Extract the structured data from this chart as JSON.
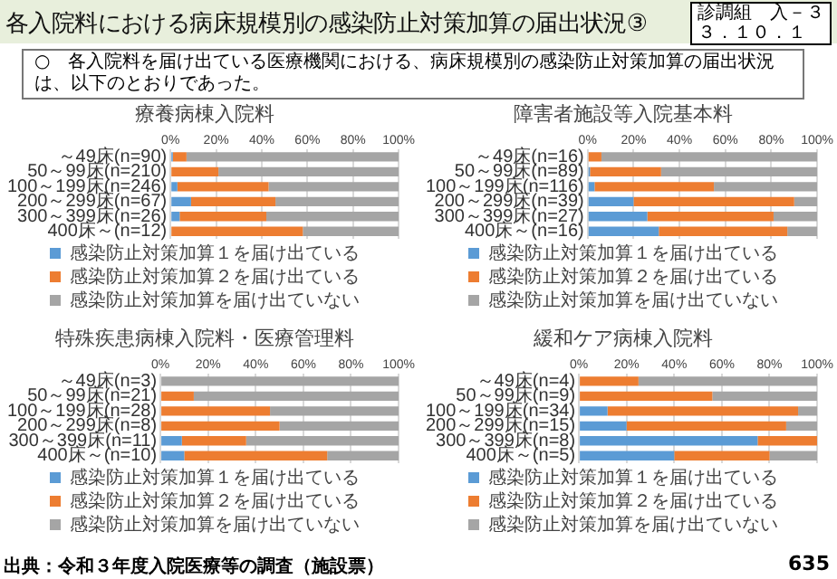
{
  "chart_data": [
    {
      "type": "bar",
      "orientation": "horizontal",
      "stacked": true,
      "title": "療養病棟入院料",
      "categories": [
        "～49床(n=90)",
        "50～99床(n=210)",
        "100～199床(n=246)",
        "200～299床(n=67)",
        "300～399床(n=26)",
        "400床～(n=12)"
      ],
      "series": [
        {
          "name": "感染防止対策加算１を届け出ている",
          "color": "#5b9bd5",
          "values": [
            1,
            0,
            3,
            9,
            4,
            0
          ]
        },
        {
          "name": "感染防止対策加算２を届け出ている",
          "color": "#ed7d31",
          "values": [
            6,
            21,
            40,
            37,
            38,
            58
          ]
        },
        {
          "name": "感染防止対策加算を届け出ていない",
          "color": "#a5a5a5",
          "values": [
            93,
            79,
            57,
            54,
            58,
            42
          ]
        }
      ],
      "xlim": [
        0,
        100
      ],
      "xticks": [
        {
          "value": 0,
          "label": "0%"
        },
        {
          "value": 20,
          "label": "20%"
        },
        {
          "value": 40,
          "label": "40%"
        },
        {
          "value": 60,
          "label": "60%"
        },
        {
          "value": 80,
          "label": "80%"
        },
        {
          "value": 100,
          "label": "100%"
        }
      ],
      "grid": "x",
      "legend": "bottom",
      "annotations": [
        "各入院料における病床規模別の感染防止対策加算の届出状況③",
        "診調組　入－３",
        "３．１０．１",
        "○　各入院料を届け出ている医療機関における、病床規模別の感染防止対策加算の届出状況は、以下のとおりであった。",
        "出典：令和３年度入院医療等の調査（施設票）",
        "635"
      ]
    },
    {
      "type": "bar",
      "orientation": "horizontal",
      "stacked": true,
      "title": "障害者施設等入院基本料",
      "categories": [
        "～49床(n=16)",
        "50～99床(n=89)",
        "100～199床(n=116)",
        "200～299床(n=39)",
        "300～399床(n=27)",
        "400床～(n=16)"
      ],
      "series": [
        {
          "name": "感染防止対策加算１を届け出ている",
          "color": "#5b9bd5",
          "values": [
            0,
            1,
            3,
            20,
            26,
            31
          ]
        },
        {
          "name": "感染防止対策加算２を届け出ている",
          "color": "#ed7d31",
          "values": [
            6,
            31,
            52,
            70,
            55,
            56
          ]
        },
        {
          "name": "感染防止対策加算を届け出ていない",
          "color": "#a5a5a5",
          "values": [
            94,
            68,
            45,
            10,
            19,
            13
          ]
        }
      ],
      "xlim": [
        0,
        100
      ],
      "xticks": [
        {
          "value": 0,
          "label": "0%"
        },
        {
          "value": 20,
          "label": "20%"
        },
        {
          "value": 40,
          "label": "40%"
        },
        {
          "value": 60,
          "label": "60%"
        },
        {
          "value": 80,
          "label": "80%"
        },
        {
          "value": 100,
          "label": "100%"
        }
      ],
      "grid": "x",
      "legend": "bottom"
    },
    {
      "type": "bar",
      "orientation": "horizontal",
      "stacked": true,
      "title": "特殊疾患病棟入院料・医療管理料",
      "categories": [
        "～49床(n=3)",
        "50～99床(n=21)",
        "100～199床(n=28)",
        "200～299床(n=8)",
        "300～399床(n=11)",
        "400床～(n=10)"
      ],
      "series": [
        {
          "name": "感染防止対策加算１を届け出ている",
          "color": "#5b9bd5",
          "values": [
            0,
            0,
            0,
            0,
            9,
            10
          ]
        },
        {
          "name": "感染防止対策加算２を届け出ている",
          "color": "#ed7d31",
          "values": [
            0,
            14,
            46,
            50,
            27,
            60
          ]
        },
        {
          "name": "感染防止対策加算を届け出ていない",
          "color": "#a5a5a5",
          "values": [
            100,
            86,
            54,
            50,
            64,
            30
          ]
        }
      ],
      "xlim": [
        0,
        100
      ],
      "xticks": [
        {
          "value": 0,
          "label": "0%"
        },
        {
          "value": 20,
          "label": "20%"
        },
        {
          "value": 40,
          "label": "40%"
        },
        {
          "value": 60,
          "label": "60%"
        },
        {
          "value": 80,
          "label": "80%"
        },
        {
          "value": 100,
          "label": "100%"
        }
      ],
      "grid": "x",
      "legend": "bottom"
    },
    {
      "type": "bar",
      "orientation": "horizontal",
      "stacked": true,
      "title": "緩和ケア病棟入院料",
      "categories": [
        "～49床(n=4)",
        "50～99床(n=9)",
        "100～199床(n=34)",
        "200～299床(n=15)",
        "300～399床(n=8)",
        "400床～(n=5)"
      ],
      "series": [
        {
          "name": "感染防止対策加算１を届け出ている",
          "color": "#5b9bd5",
          "values": [
            0,
            0,
            12,
            20,
            75,
            40
          ]
        },
        {
          "name": "感染防止対策加算２を届け出ている",
          "color": "#ed7d31",
          "values": [
            25,
            56,
            80,
            67,
            25,
            40
          ]
        },
        {
          "name": "感染防止対策加算を届け出ていない",
          "color": "#a5a5a5",
          "values": [
            75,
            44,
            8,
            13,
            0,
            20
          ]
        }
      ],
      "xlim": [
        0,
        100
      ],
      "xticks": [
        {
          "value": 0,
          "label": "0%"
        },
        {
          "value": 20,
          "label": "20%"
        },
        {
          "value": 40,
          "label": "40%"
        },
        {
          "value": 60,
          "label": "60%"
        },
        {
          "value": 80,
          "label": "80%"
        },
        {
          "value": 100,
          "label": "100%"
        }
      ],
      "grid": "x",
      "legend": "bottom"
    }
  ]
}
